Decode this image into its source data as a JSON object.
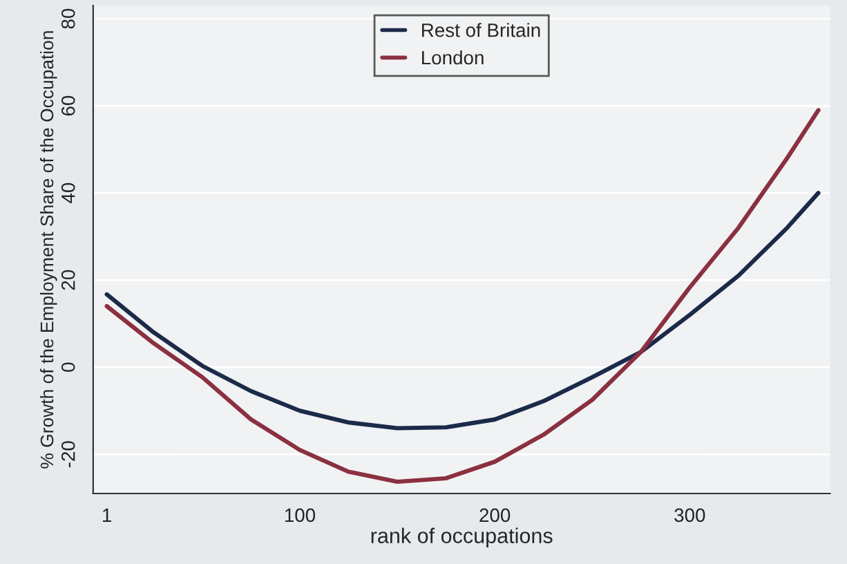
{
  "chart_data": {
    "type": "line",
    "xlabel": "rank of occupations",
    "ylabel": "% Growth of the Employment Share of the Occupation",
    "xlim": [
      -6,
      372
    ],
    "xticks": [
      1,
      100,
      200,
      300
    ],
    "ylim": [
      -29,
      83
    ],
    "yticks": [
      -20,
      0,
      20,
      40,
      60,
      80
    ],
    "grid": "y",
    "legend": "top",
    "marker": "none",
    "line_style": "solid",
    "series": [
      {
        "name": "Rest of Britain",
        "color": "#1c2a4a",
        "x": [
          1,
          25,
          50,
          75,
          100,
          125,
          150,
          175,
          200,
          225,
          250,
          275,
          300,
          325,
          350,
          366
        ],
        "values": [
          16.7,
          8,
          0.3,
          -5.5,
          -10,
          -12.7,
          -14,
          -13.8,
          -12,
          -7.8,
          -2.3,
          3.5,
          12,
          21,
          32,
          40
        ]
      },
      {
        "name": "London",
        "color": "#8b3040",
        "x": [
          1,
          25,
          50,
          75,
          100,
          125,
          150,
          175,
          200,
          225,
          250,
          275,
          300,
          325,
          350,
          366
        ],
        "values": [
          14,
          5.5,
          -2.3,
          -12,
          -19,
          -24,
          -26.3,
          -25.5,
          -21.7,
          -15.5,
          -7.5,
          3.5,
          18.3,
          32,
          48,
          59
        ]
      }
    ]
  }
}
